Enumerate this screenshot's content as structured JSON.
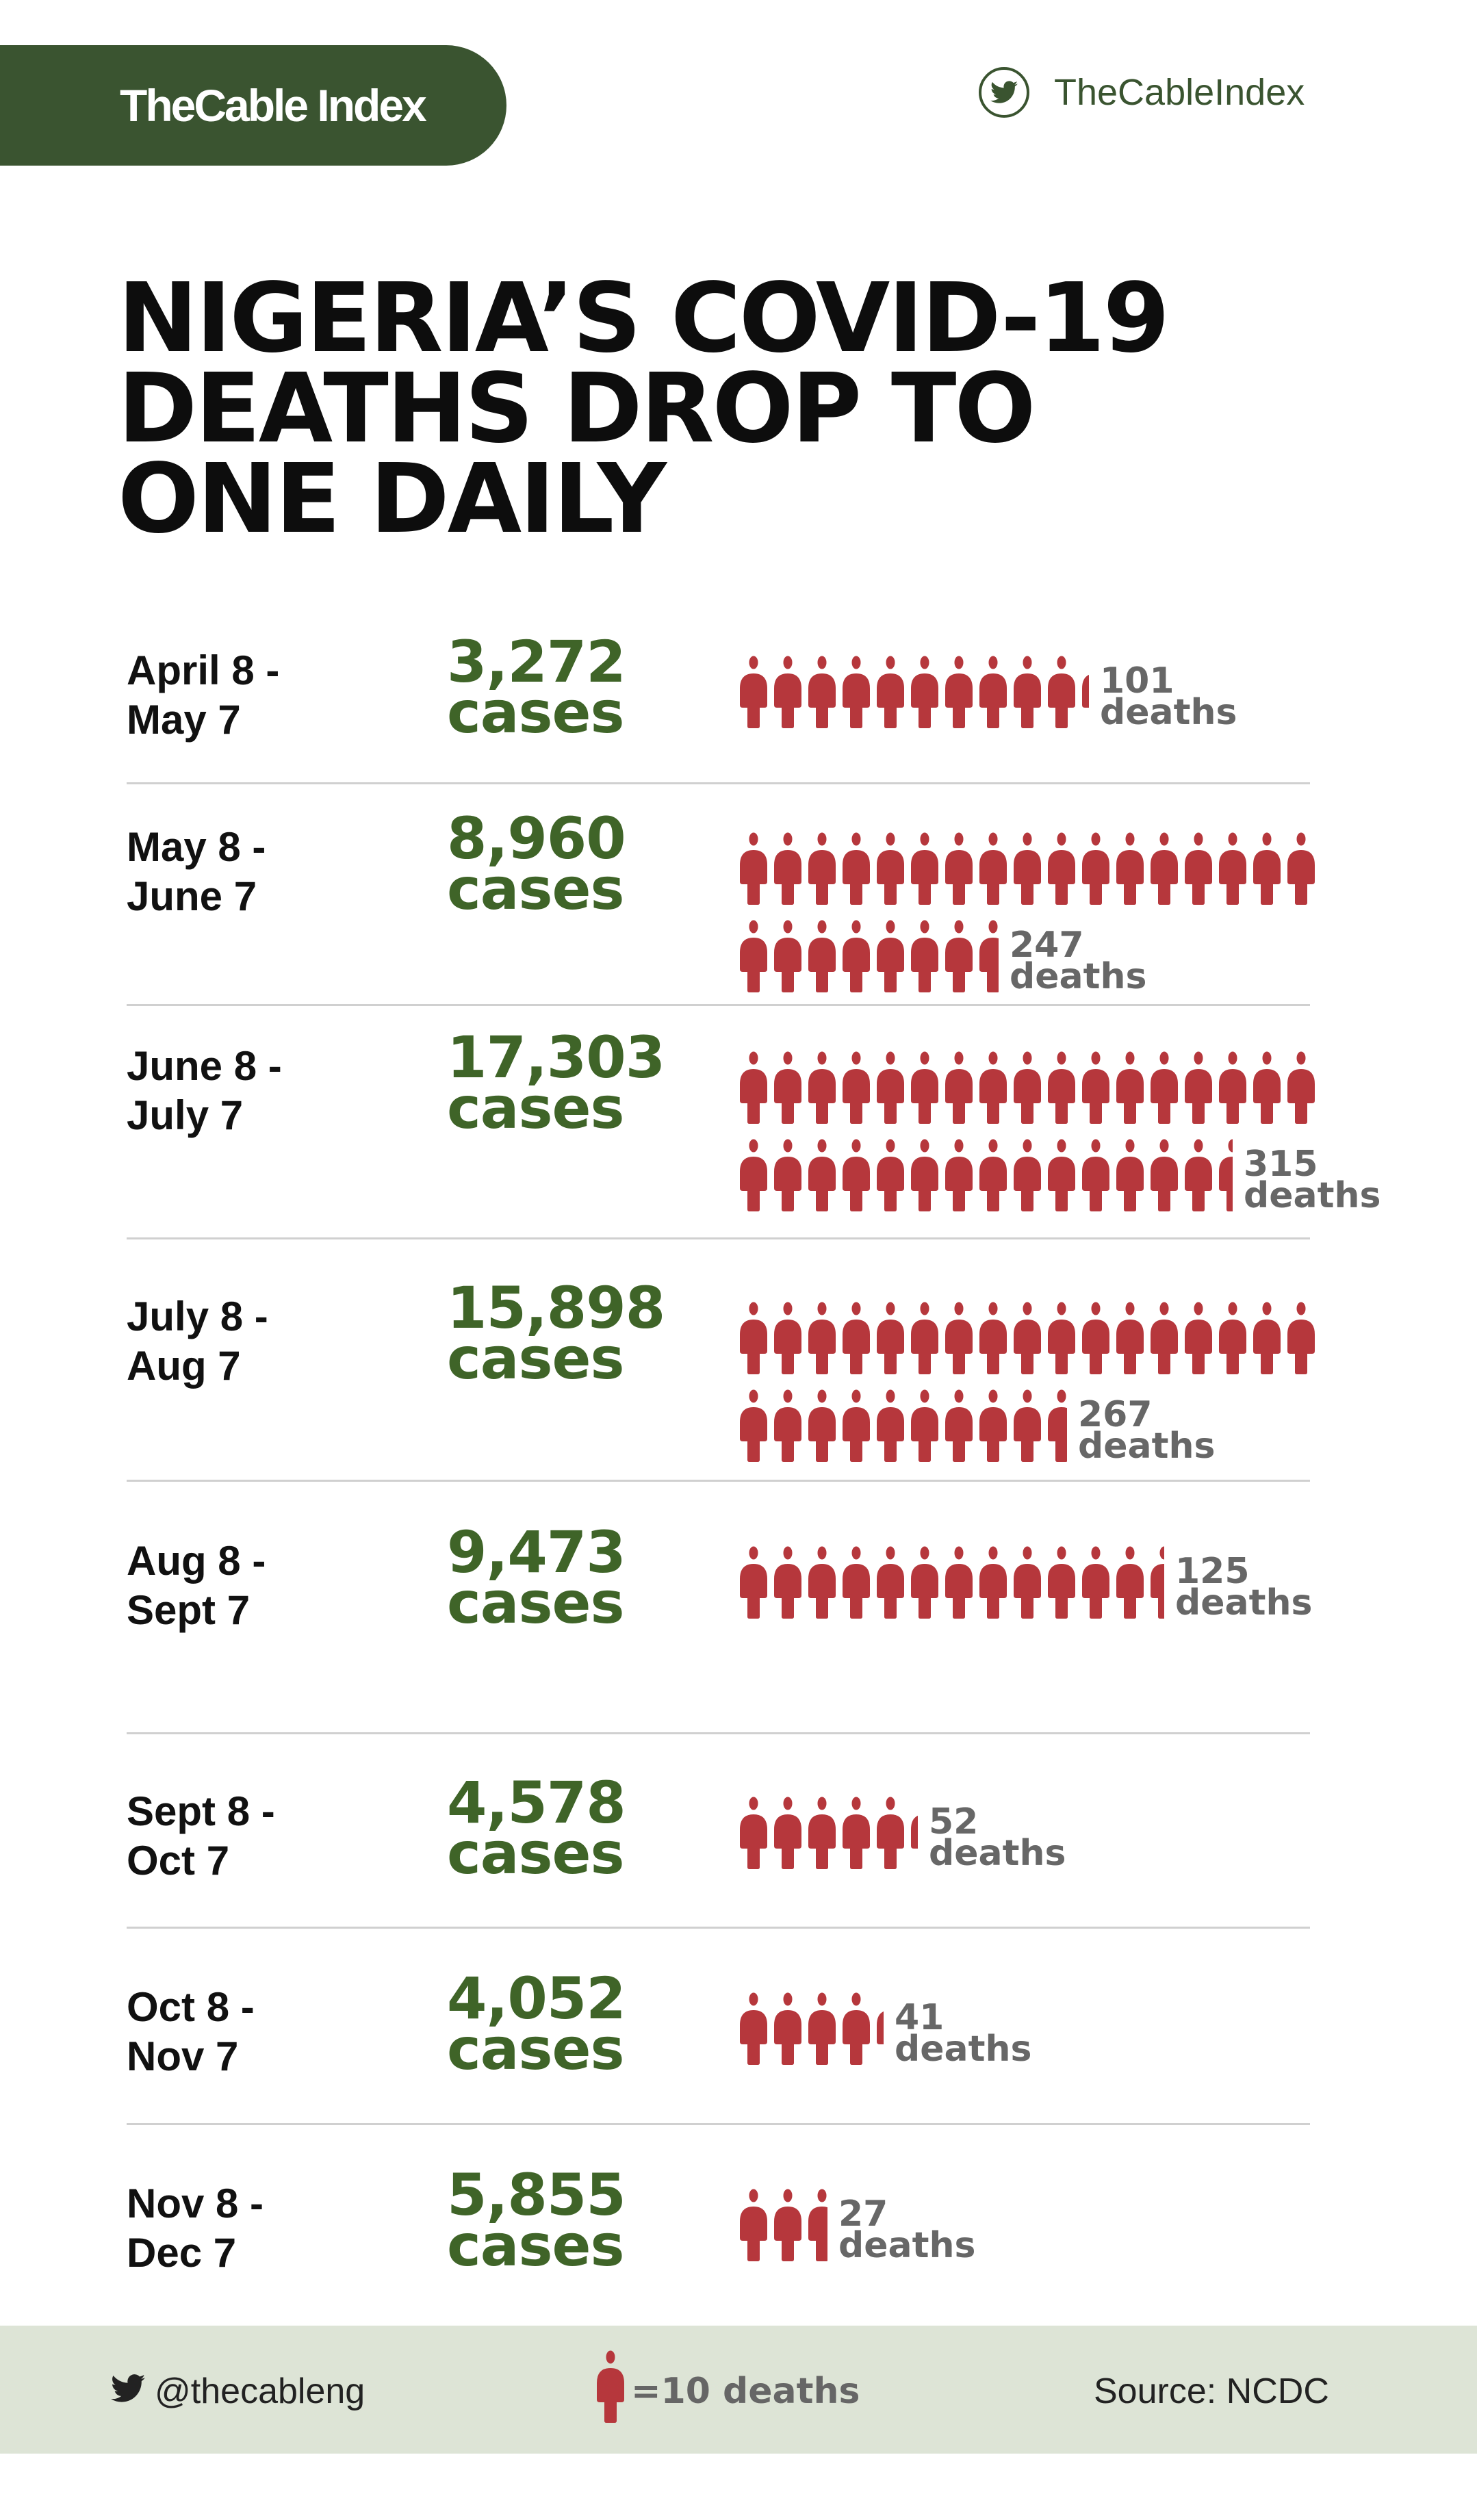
{
  "brand": {
    "logo": "TheCable Index",
    "twitter_handle": "TheCableIndex"
  },
  "title": [
    "NIGERIA’S COVID-19",
    "DEATHS DROP TO",
    "ONE DAILY"
  ],
  "colors": {
    "green": "#3f6428",
    "red": "#b6373c",
    "gray": "#676767",
    "footer_bg": "#dde4d6"
  },
  "rows": [
    {
      "period": "April 8 -\nMay 7",
      "cases_num": "3,272",
      "cases_word": "cases",
      "deaths": 101,
      "deaths_num": "101",
      "deaths_word": "deaths"
    },
    {
      "period": "May 8 -\nJune 7",
      "cases_num": "8,960",
      "cases_word": "cases",
      "deaths": 247,
      "deaths_num": "247",
      "deaths_word": "deaths"
    },
    {
      "period": "June 8 -\nJuly 7",
      "cases_num": "17,303",
      "cases_word": "cases",
      "deaths": 315,
      "deaths_num": "315",
      "deaths_word": "deaths"
    },
    {
      "period": "July 8 -\nAug 7",
      "cases_num": "15,898",
      "cases_word": "cases",
      "deaths": 267,
      "deaths_num": "267",
      "deaths_word": "deaths"
    },
    {
      "period": "Aug 8 -\nSept 7",
      "cases_num": "9,473",
      "cases_word": "cases",
      "deaths": 125,
      "deaths_num": "125",
      "deaths_word": "deaths"
    },
    {
      "period": "Sept 8 -\nOct 7",
      "cases_num": "4,578",
      "cases_word": "cases",
      "deaths": 52,
      "deaths_num": "52",
      "deaths_word": "deaths"
    },
    {
      "period": "Oct 8 -\nNov 7",
      "cases_num": "4,052",
      "cases_word": "cases",
      "deaths": 41,
      "deaths_num": "41",
      "deaths_word": "deaths"
    },
    {
      "period": "Nov 8 -\nDec 7",
      "cases_num": "5,855",
      "cases_word": "cases",
      "deaths": 27,
      "deaths_num": "27",
      "deaths_word": "deaths"
    }
  ],
  "footer": {
    "handle": "@thecableng",
    "legend": "=10 deaths",
    "source": "Source: NCDC"
  }
}
